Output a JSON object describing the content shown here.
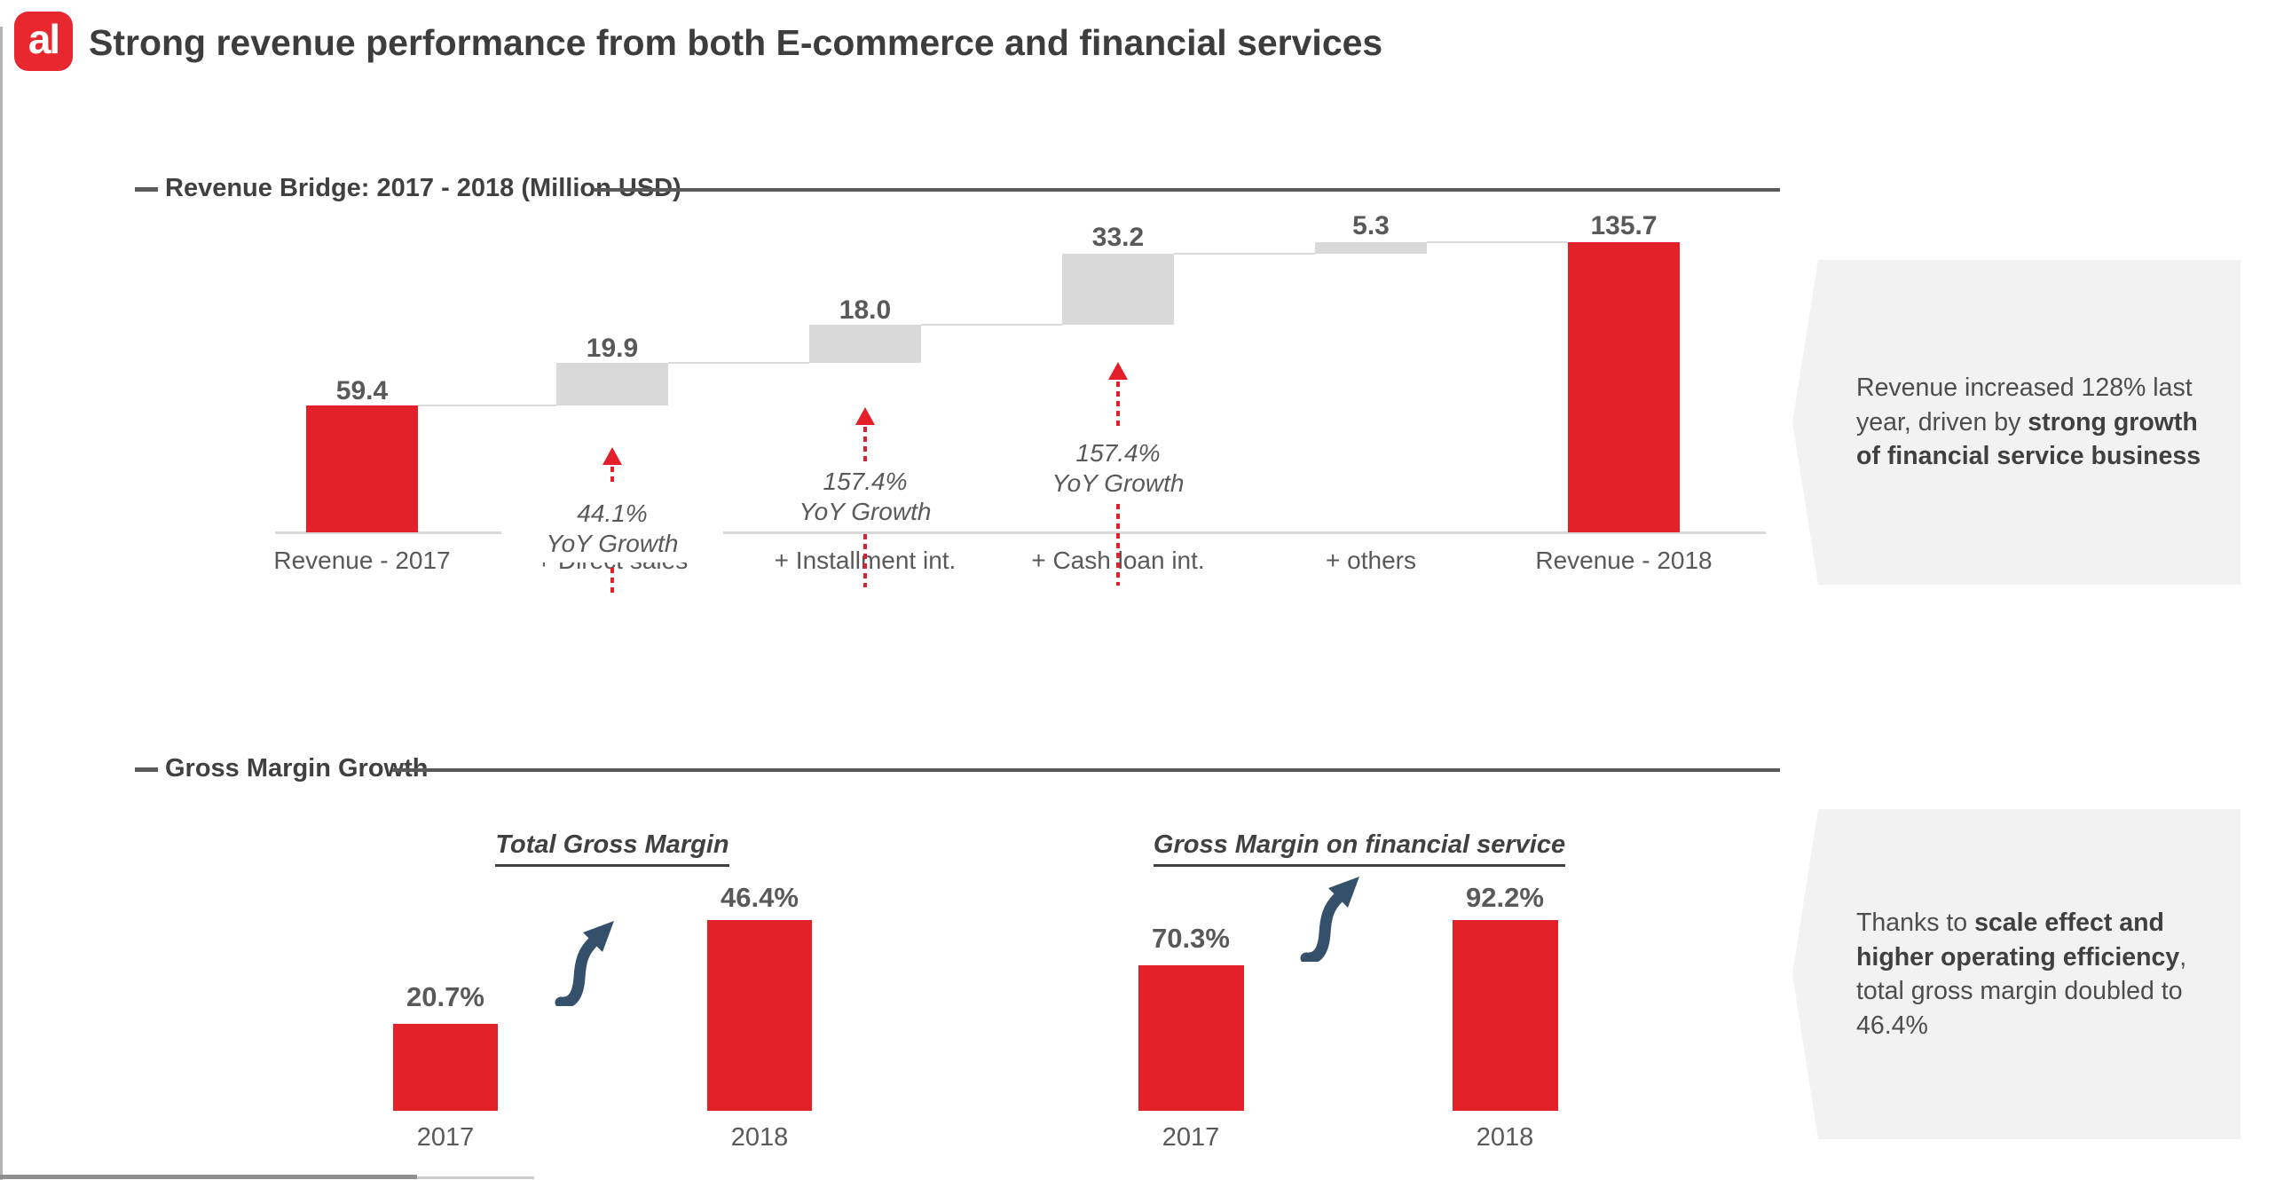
{
  "slide": {
    "logo_text": "al",
    "title": "Strong revenue performance from both E-commerce and financial services"
  },
  "section1": {
    "heading": "Revenue Bridge: 2017 - 2018 (Million USD)"
  },
  "section2": {
    "heading": "Gross Margin Growth"
  },
  "callout1": {
    "segments": [
      {
        "text": "Revenue increased 128% last year, driven by ",
        "bold": false
      },
      {
        "text": "strong growth of financial service business",
        "bold": true
      }
    ]
  },
  "callout2": {
    "segments": [
      {
        "text": "Thanks to ",
        "bold": false
      },
      {
        "text": "scale effect and higher operating efficiency",
        "bold": true
      },
      {
        "text": ", total gross margin doubled to 46.4%",
        "bold": false
      }
    ]
  },
  "colors": {
    "accent_red": "#e32128",
    "bar_gray": "#d9d9d9",
    "text_dark": "#404040",
    "text_gray": "#595959",
    "callout_bg": "#f2f2f2",
    "arrow_navy": "#35506b",
    "logo_red": "#e8272e"
  },
  "chart_data": [
    {
      "type": "bar",
      "subtype": "waterfall",
      "title": "Revenue Bridge: 2017 - 2018 (Million USD)",
      "categories": [
        "Revenue - 2017",
        "+ Direct sales",
        "+ Installment int.",
        "+ Cash loan int.",
        "+ others",
        "Revenue - 2018"
      ],
      "values": [
        59.4,
        19.9,
        18.0,
        33.2,
        5.3,
        135.7
      ],
      "labels": [
        "59.4",
        "19.9",
        "18.0",
        "33.2",
        "5.3",
        "135.7"
      ],
      "bar_roles": [
        "total",
        "increment",
        "increment",
        "increment",
        "increment",
        "total"
      ],
      "cumulative_levels": [
        59.4,
        79.3,
        97.3,
        130.5,
        135.8,
        135.7
      ],
      "unit": "Million USD",
      "ylim": [
        0,
        150
      ],
      "grid": false,
      "annotations": [
        {
          "category": "+ Direct sales",
          "lines": [
            "44.1%",
            "YoY Growth"
          ]
        },
        {
          "category": "+ Installment int.",
          "lines": [
            "157.4%",
            "YoY Growth"
          ]
        },
        {
          "category": "+ Cash loan int.",
          "lines": [
            "157.4%",
            "YoY Growth"
          ]
        }
      ]
    },
    {
      "type": "bar",
      "title": "Total Gross Margin",
      "categories": [
        "2017",
        "2018"
      ],
      "values": [
        20.7,
        46.4
      ],
      "labels": [
        "20.7%",
        "46.4%"
      ],
      "unit": "%",
      "ylim": [
        0,
        50
      ],
      "grid": false
    },
    {
      "type": "bar",
      "title": "Gross Margin on financial service",
      "categories": [
        "2017",
        "2018"
      ],
      "values": [
        70.3,
        92.2
      ],
      "labels": [
        "70.3%",
        "92.2%"
      ],
      "unit": "%",
      "ylim": [
        0,
        100
      ],
      "grid": false
    }
  ]
}
